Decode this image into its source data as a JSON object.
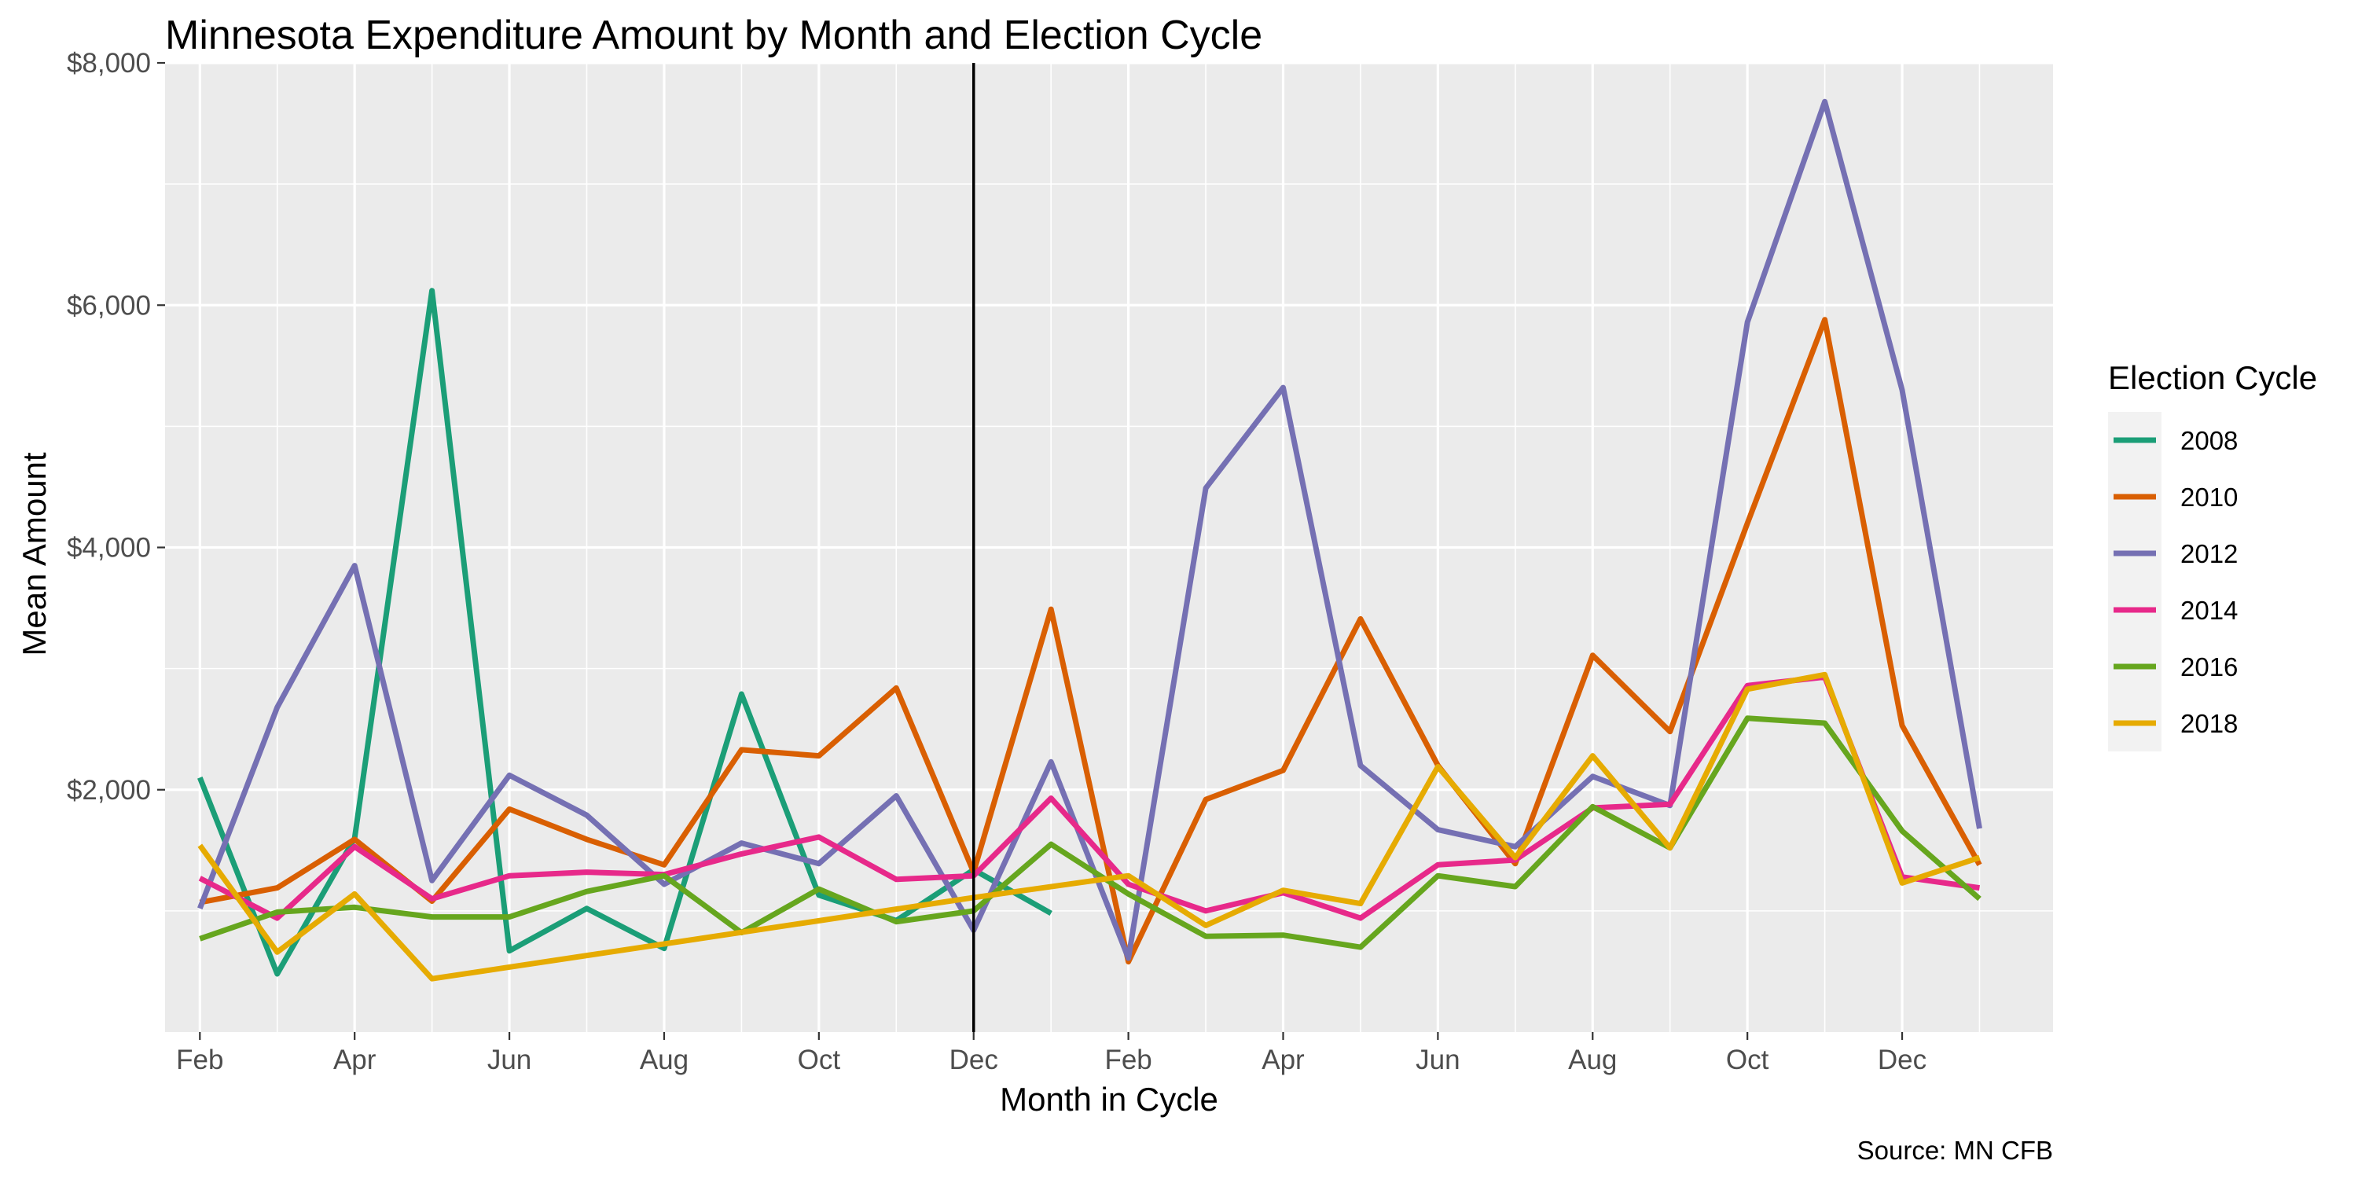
{
  "chart_data": {
    "type": "line",
    "title": "Minnesota Expenditure Amount by Month and Election Cycle",
    "xlabel": "Month in Cycle",
    "ylabel": "Mean Amount",
    "caption": "Source: MN CFB",
    "legend_title": "Election Cycle",
    "legend_position": "right",
    "grid": true,
    "ylim": [
      0,
      8000
    ],
    "xlim": [
      0.55,
      24.95
    ],
    "y_ticks": [
      2000,
      4000,
      6000,
      8000
    ],
    "y_tick_labels": [
      "$2,000",
      "$4,000",
      "$6,000",
      "$8,000"
    ],
    "x_ticks": [
      1,
      3,
      5,
      7,
      9,
      11,
      13,
      15,
      17,
      19,
      21,
      23
    ],
    "x_tick_labels": [
      "Feb",
      "Apr",
      "Jun",
      "Aug",
      "Oct",
      "Dec",
      "Feb",
      "Apr",
      "Jun",
      "Aug",
      "Oct",
      "Dec"
    ],
    "reference_line_x": 11,
    "colors": {
      "2008": "#1b9e77",
      "2010": "#d95f02",
      "2012": "#7570b3",
      "2014": "#e7298a",
      "2016": "#66a61e",
      "2018": "#e6ab02"
    },
    "series": [
      {
        "name": "2008",
        "x": [
          1,
          2,
          3,
          4,
          5,
          6,
          7,
          8,
          9,
          10,
          11,
          12
        ],
        "values": [
          2100,
          480,
          1600,
          6120,
          670,
          1020,
          690,
          2790,
          1130,
          920,
          1340,
          980
        ]
      },
      {
        "name": "2010",
        "x": [
          1,
          2,
          3,
          4,
          5,
          6,
          7,
          8,
          9,
          10,
          11,
          12,
          13,
          14,
          15,
          16,
          17,
          18,
          19,
          20,
          21,
          22,
          23,
          24
        ],
        "values": [
          1070,
          1190,
          1590,
          1080,
          1840,
          1590,
          1380,
          2330,
          2280,
          2840,
          1320,
          3490,
          580,
          1920,
          2160,
          3410,
          2200,
          1390,
          3110,
          2480,
          4200,
          5880,
          2530,
          1380
        ]
      },
      {
        "name": "2012",
        "x": [
          1,
          2,
          3,
          4,
          5,
          6,
          7,
          8,
          9,
          10,
          11,
          12,
          13,
          14,
          15,
          16,
          17,
          18,
          19,
          20,
          21,
          22,
          23,
          24
        ],
        "values": [
          1020,
          2680,
          3850,
          1250,
          2120,
          1790,
          1220,
          1560,
          1390,
          1950,
          840,
          2230,
          610,
          4490,
          5320,
          2200,
          1670,
          1530,
          2110,
          1870,
          5860,
          7680,
          5300,
          1680
        ]
      },
      {
        "name": "2014",
        "x": [
          1,
          2,
          3,
          4,
          5,
          6,
          7,
          8,
          9,
          10,
          11,
          12,
          13,
          14,
          15,
          16,
          17,
          18,
          19,
          20,
          21,
          22,
          23,
          24
        ],
        "values": [
          1270,
          940,
          1530,
          1100,
          1290,
          1320,
          1300,
          1470,
          1610,
          1260,
          1290,
          1930,
          1220,
          1000,
          1150,
          940,
          1380,
          1420,
          1850,
          1880,
          2860,
          2930,
          1280,
          1190
        ]
      },
      {
        "name": "2016",
        "x": [
          1,
          2,
          3,
          4,
          5,
          6,
          7,
          8,
          9,
          10,
          11,
          12,
          13,
          14,
          15,
          16,
          17,
          18,
          19,
          20,
          21,
          22,
          23,
          24
        ],
        "values": [
          770,
          990,
          1030,
          950,
          950,
          1160,
          1290,
          820,
          1180,
          910,
          1000,
          1550,
          1140,
          790,
          800,
          700,
          1290,
          1200,
          1860,
          1520,
          2590,
          2550,
          1660,
          1100
        ]
      },
      {
        "name": "2018",
        "x": [
          1,
          2,
          3,
          4,
          11,
          13,
          14,
          15,
          16,
          17,
          18,
          19,
          20,
          21,
          22,
          23,
          24
        ],
        "values": [
          1540,
          660,
          1140,
          440,
          1110,
          1290,
          880,
          1170,
          1060,
          2190,
          1440,
          2280,
          1520,
          2830,
          2950,
          1230,
          1440
        ]
      }
    ]
  }
}
